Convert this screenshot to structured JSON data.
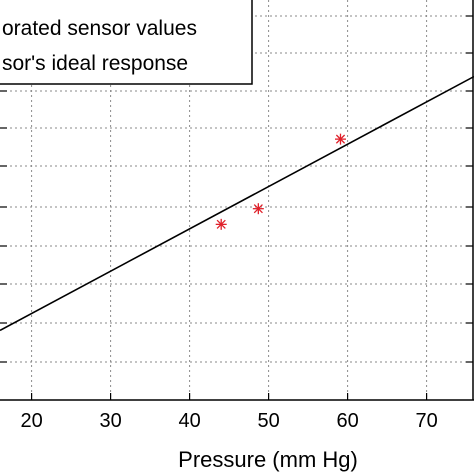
{
  "chart_data": {
    "type": "scatter",
    "xlabel": "Pressure (mm Hg)",
    "ylabel": "",
    "title": "",
    "xlim": [
      16,
      76
    ],
    "ylim": [
      0,
      11.5
    ],
    "x_ticks": [
      20,
      30,
      40,
      50,
      60,
      70
    ],
    "x_tick_labels": [
      "20",
      "30",
      "40",
      "50",
      "60",
      "70"
    ],
    "grid": true,
    "legend_position": "top-left",
    "legend_entries": [
      "orated sensor values",
      "sor's ideal response"
    ],
    "series": [
      {
        "name": "orated sensor values",
        "kind": "markers",
        "marker": "asterisk",
        "color": "#e0202a",
        "points": [
          {
            "x": 44,
            "y": 5.05
          },
          {
            "x": 48.7,
            "y": 5.5
          },
          {
            "x": 59.1,
            "y": 7.5
          }
        ]
      },
      {
        "name": "sor's ideal response",
        "kind": "line",
        "color": "#000000",
        "points": [
          {
            "x": 16,
            "y": 2.0
          },
          {
            "x": 76,
            "y": 9.3
          }
        ]
      }
    ]
  }
}
